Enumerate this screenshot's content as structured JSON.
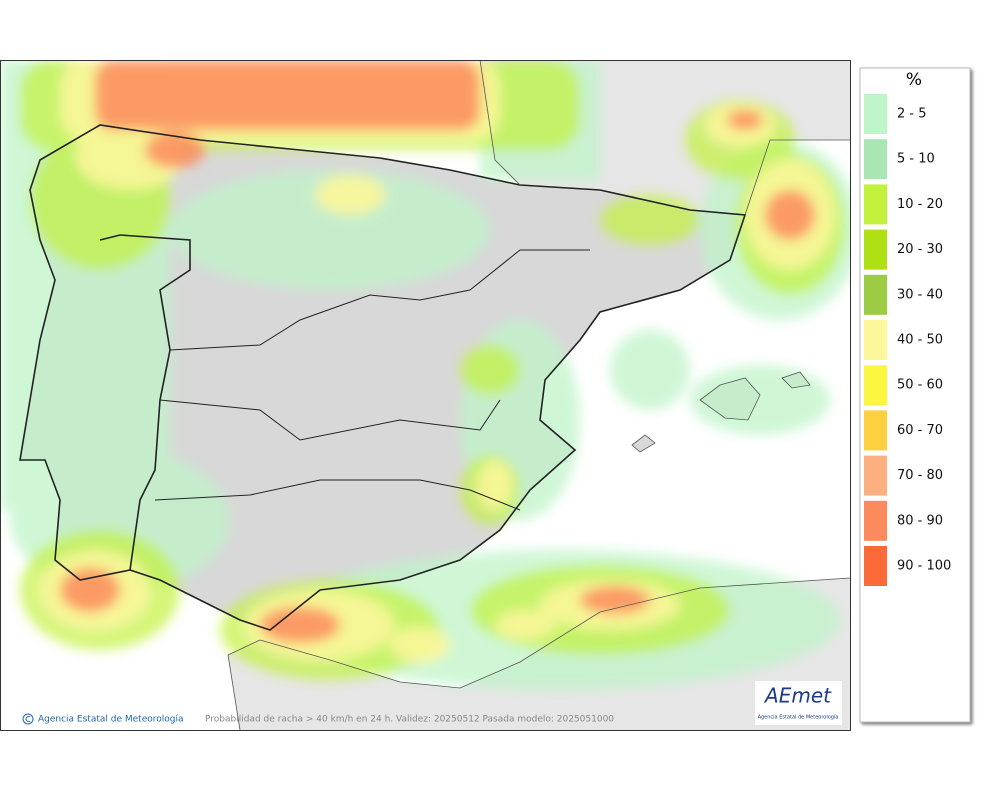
{
  "legend": {
    "title": "%",
    "items": [
      {
        "label": "2 - 5",
        "color": "#bff5c9"
      },
      {
        "label": "5 - 10",
        "color": "#a9e6b4"
      },
      {
        "label": "10 - 20",
        "color": "#c3f23c"
      },
      {
        "label": "20 - 30",
        "color": "#aee014"
      },
      {
        "label": "30 - 40",
        "color": "#9ccc44"
      },
      {
        "label": "40 - 50",
        "color": "#fbf79a"
      },
      {
        "label": "50 - 60",
        "color": "#fbf741"
      },
      {
        "label": "60 - 70",
        "color": "#fdd040"
      },
      {
        "label": "70 - 80",
        "color": "#fdb07f"
      },
      {
        "label": "80 - 90",
        "color": "#fd8a5c"
      },
      {
        "label": "90 - 100",
        "color": "#fd6a3a"
      }
    ]
  },
  "footer": {
    "credit": "Agencia Estatal de Meteorología",
    "caption": "Probabilidad de racha > 40 km/h en 24 h. Validez: 20250512 Pasada modelo: 2025051000"
  },
  "logo": {
    "name": "AEmet",
    "subtitle": "Agencia Estatal de Meteorología"
  }
}
